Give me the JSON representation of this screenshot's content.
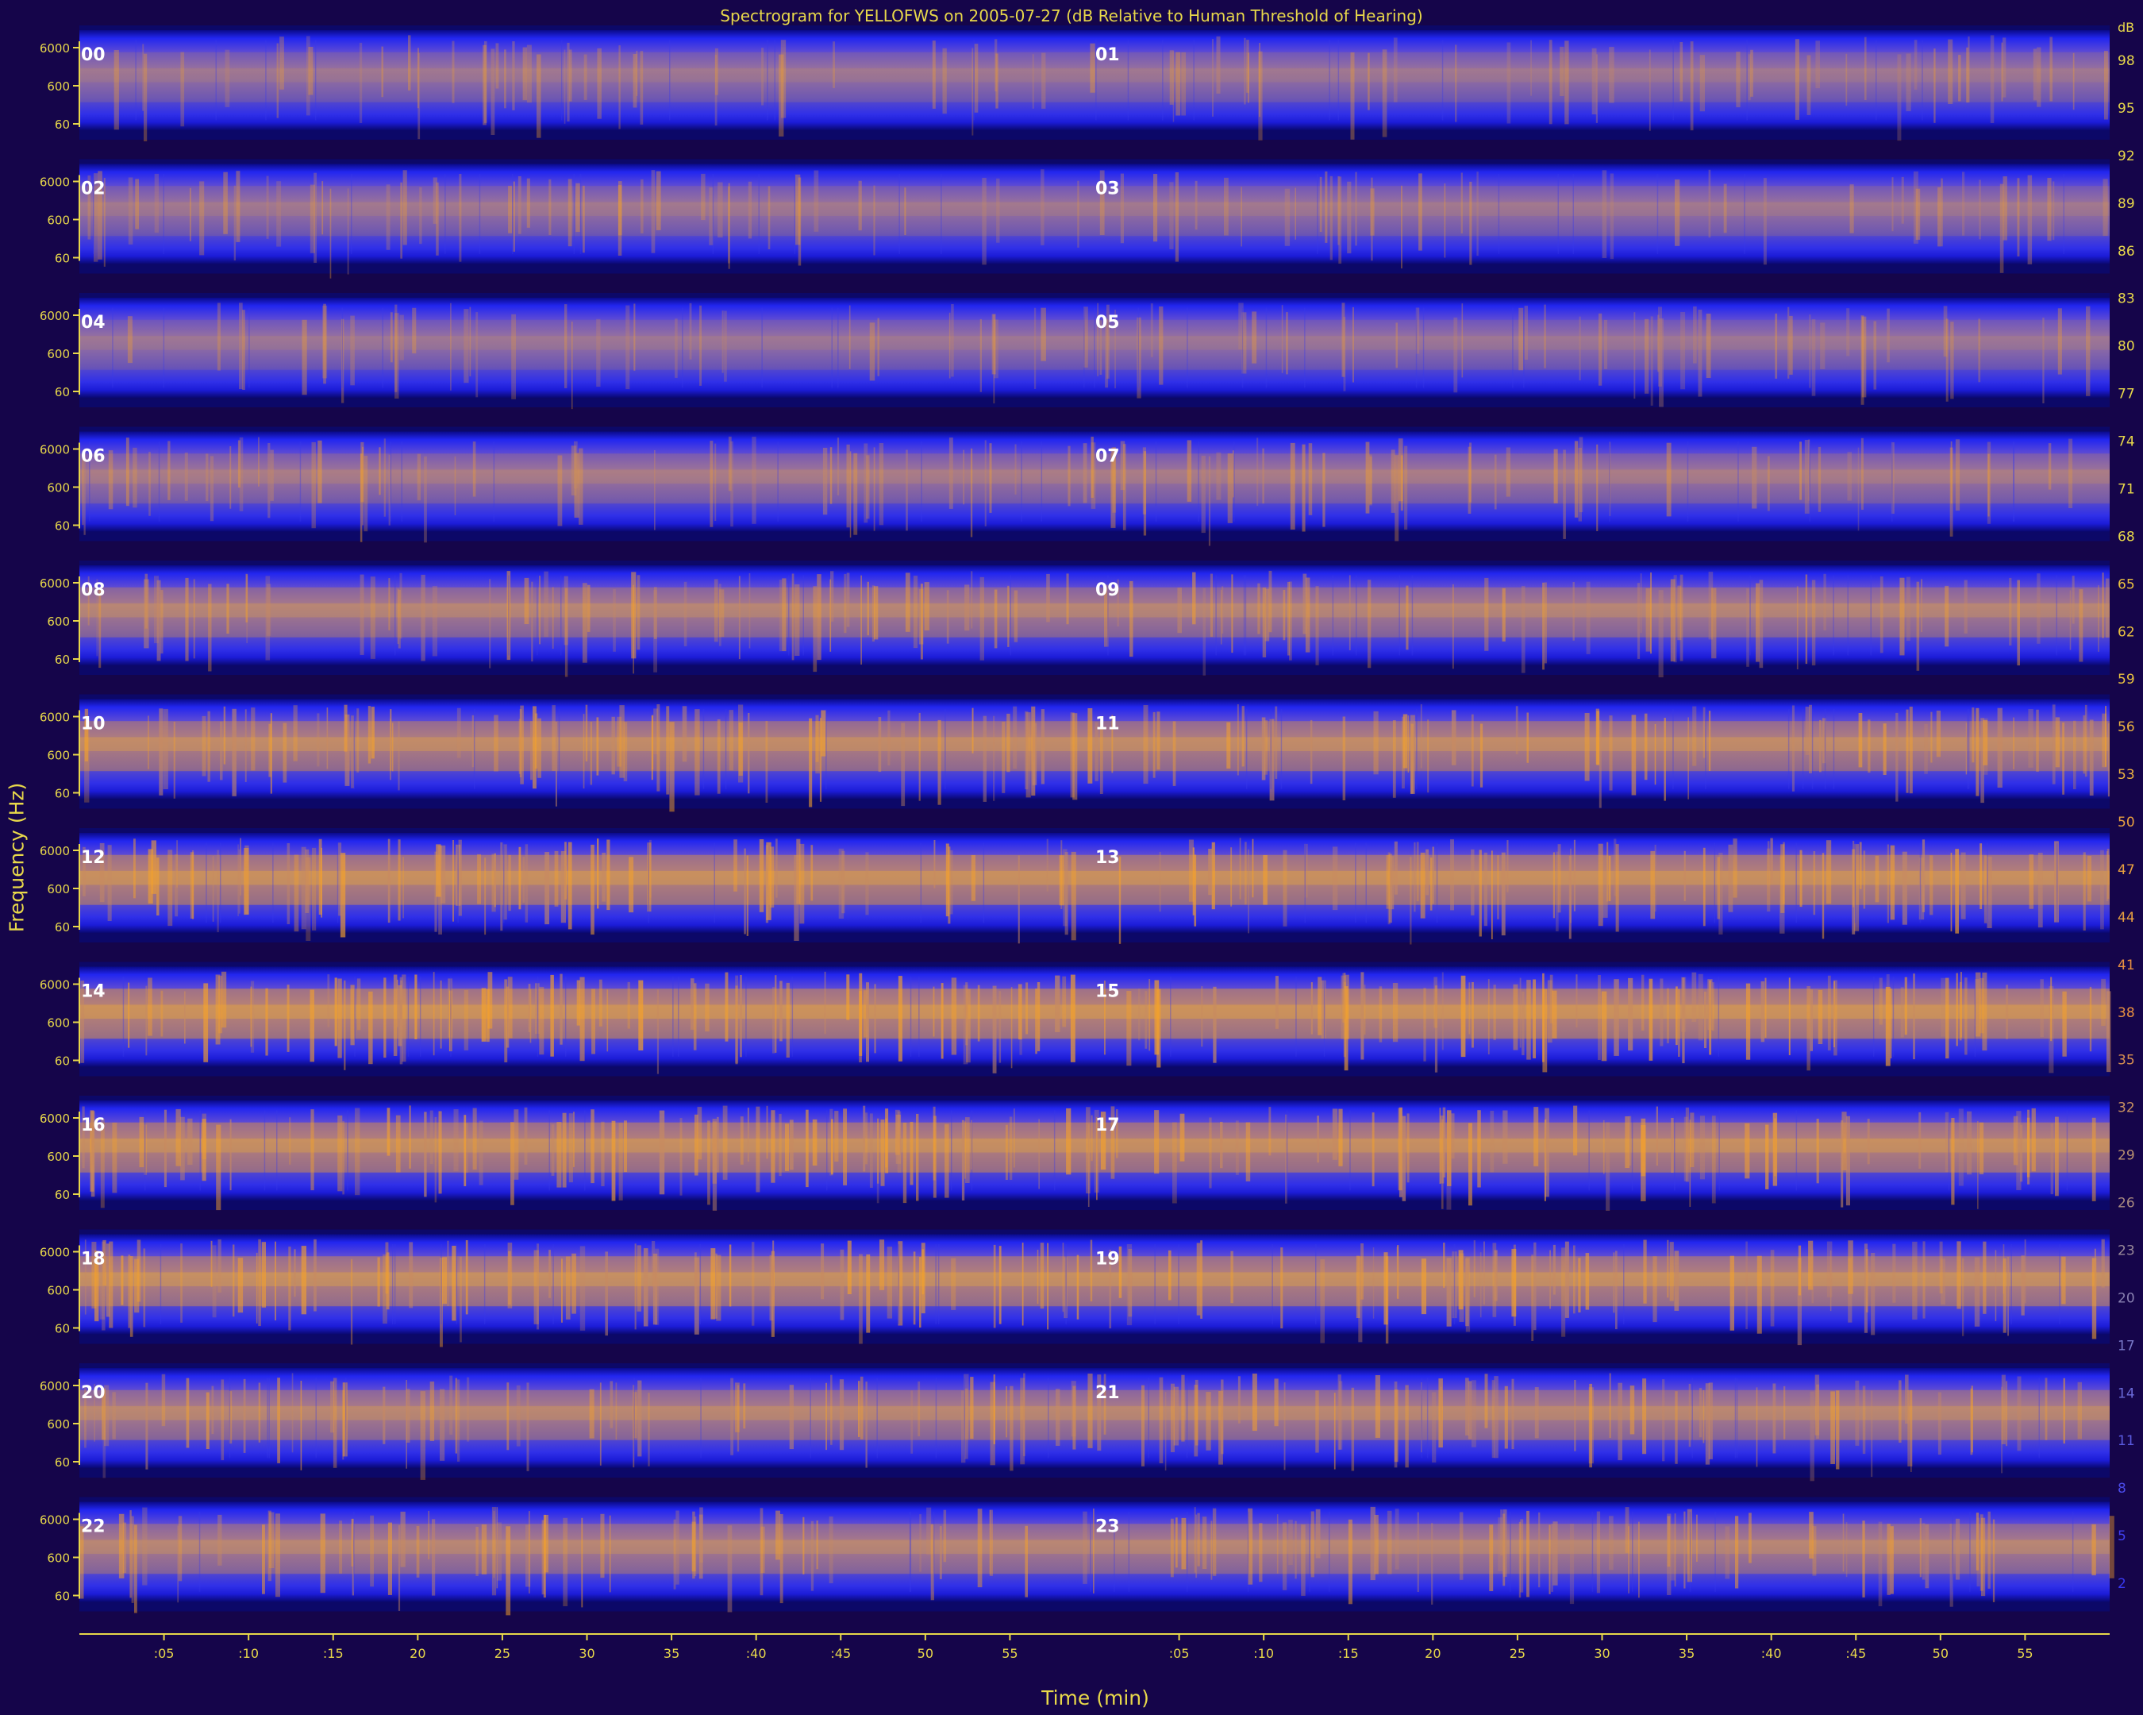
{
  "chart_data": {
    "type": "heatmap",
    "title": "Spectrogram for YELLOFWS on 2005-07-27 (dB Relative to Human Threshold of Hearing)",
    "xlabel": "Time (min)",
    "ylabel": "Frequency (Hz)",
    "rows": [
      {
        "left": "00",
        "right": "01"
      },
      {
        "left": "02",
        "right": "03"
      },
      {
        "left": "04",
        "right": "05"
      },
      {
        "left": "06",
        "right": "07"
      },
      {
        "left": "08",
        "right": "09"
      },
      {
        "left": "10",
        "right": "11"
      },
      {
        "left": "12",
        "right": "13"
      },
      {
        "left": "14",
        "right": "15"
      },
      {
        "left": "16",
        "right": "17"
      },
      {
        "left": "18",
        "right": "19"
      },
      {
        "left": "20",
        "right": "21"
      },
      {
        "left": "22",
        "right": "23"
      }
    ],
    "row_intensity": [
      0.25,
      0.27,
      0.22,
      0.35,
      0.5,
      0.65,
      0.75,
      0.8,
      0.72,
      0.7,
      0.55,
      0.52
    ],
    "frequency_ticks": [
      "6000",
      "600",
      "60"
    ],
    "time_ticks": [
      ":05",
      ":10",
      ":15",
      "20",
      "25",
      "30",
      "35",
      ":40",
      ":45",
      "50",
      "55"
    ],
    "time_tick_minutes": [
      5,
      10,
      15,
      20,
      25,
      30,
      35,
      40,
      45,
      50,
      55
    ],
    "x_range_minutes": [
      0,
      60
    ],
    "colorbar": {
      "label": "dB",
      "ticks": [
        "98",
        "95",
        "92",
        "89",
        "86",
        "83",
        "80",
        "77",
        "74",
        "71",
        "68",
        "65",
        "62",
        "59",
        "56",
        "53",
        "50",
        "47",
        "44",
        "41",
        "38",
        "35",
        "32",
        "29",
        "26",
        "23",
        "20",
        "17",
        "14",
        "11",
        "8",
        "5",
        "2"
      ],
      "colors": [
        "#e8d84a",
        "#e8d84a",
        "#e8d84a",
        "#e8d84a",
        "#e8d84a",
        "#e8d84a",
        "#e8d84a",
        "#e8d84a",
        "#e8d84a",
        "#e8d84a",
        "#e8d84a",
        "#e8c040",
        "#e8c040",
        "#e8c040",
        "#e8b040",
        "#e8b040",
        "#e8a040",
        "#e8a040",
        "#e8a040",
        "#e89040",
        "#e89040",
        "#d89050",
        "#c89060",
        "#b89070",
        "#a88a80",
        "#988898",
        "#8880b0",
        "#7878c8",
        "#6a6ad8",
        "#5a5ae0",
        "#4a4ae8",
        "#4040f0",
        "#3838f0"
      ]
    },
    "colors": {
      "background": "#15054a",
      "axis": "#e8d84a",
      "band_low": "#2a1ee8",
      "band_mid": "#6a58d0",
      "band_high": "#f4a128"
    }
  }
}
